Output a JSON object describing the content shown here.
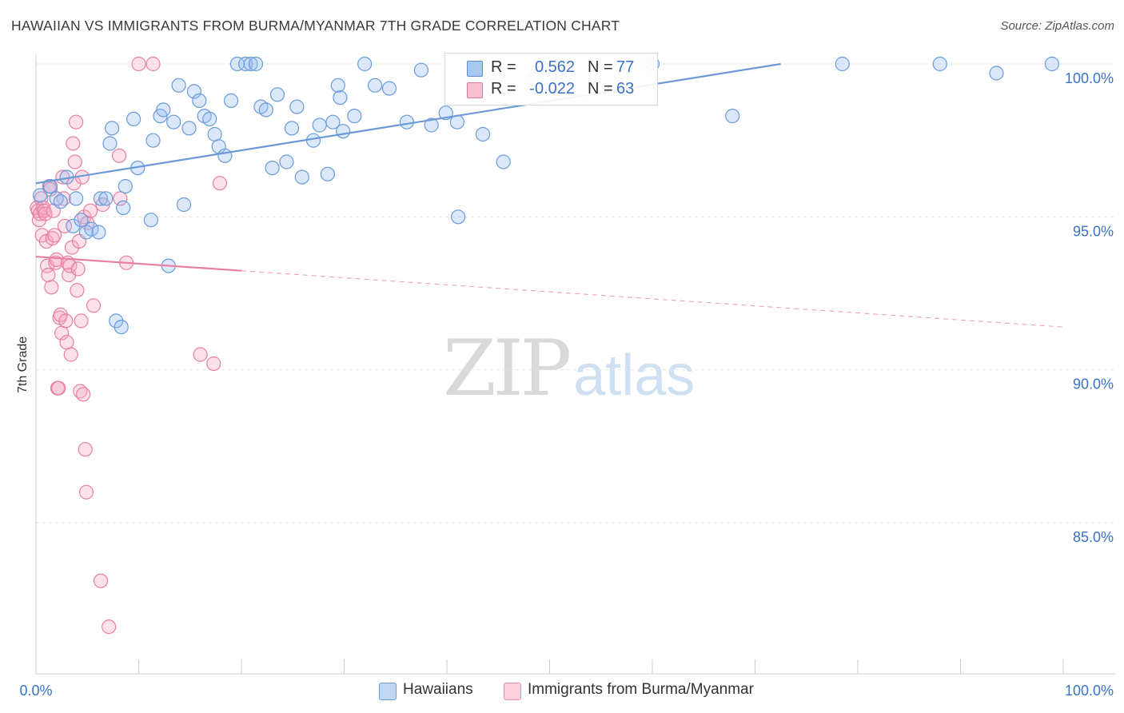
{
  "title": "HAWAIIAN VS IMMIGRANTS FROM BURMA/MYANMAR 7TH GRADE CORRELATION CHART",
  "source": "Source: ZipAtlas.com",
  "watermark": {
    "zip": "ZIP",
    "atlas": "atlas"
  },
  "legend_top": {
    "rows": [
      {
        "r_label": "R =",
        "r_value": "0.562",
        "n_label": "N =",
        "n_value": "77",
        "color": "#a8c8f0",
        "border": "#5a8fd8"
      },
      {
        "r_label": "R =",
        "r_value": "-0.022",
        "n_label": "N =",
        "n_value": "63",
        "color": "#f8c0d0",
        "border": "#e07898"
      }
    ]
  },
  "legend_bottom": {
    "items": [
      {
        "label": "Hawaiians",
        "color": "#c0d8f5",
        "border": "#6a9ad8"
      },
      {
        "label": "Immigrants from Burma/Myanmar",
        "color": "#fad0dc",
        "border": "#e890aa"
      }
    ]
  },
  "chart_data": {
    "type": "scatter",
    "xlabel": "",
    "ylabel": "7th Grade",
    "xlim": [
      0,
      100
    ],
    "ylim": [
      80.5,
      100.5
    ],
    "x_tick_labels": [
      "0.0%",
      "100.0%"
    ],
    "y_ticks": [
      85,
      90,
      95,
      100
    ],
    "y_tick_labels": [
      "85.0%",
      "90.0%",
      "95.0%",
      "100.0%"
    ],
    "grid": true,
    "legend_position": "bottom",
    "series": [
      {
        "name": "Hawaiians",
        "color": "#6a9ad8",
        "fill": "rgba(150,190,240,0.35)",
        "trend": {
          "x0": 0,
          "y0": 96.1,
          "x1": 72.5,
          "y1": 100.0,
          "solid_to": 72.5
        },
        "points": [
          [
            0.4,
            95.7
          ],
          [
            1.4,
            96.0
          ],
          [
            2.0,
            95.6
          ],
          [
            2.4,
            95.5
          ],
          [
            3.0,
            96.3
          ],
          [
            3.6,
            94.7
          ],
          [
            3.9,
            95.6
          ],
          [
            4.4,
            94.9
          ],
          [
            4.9,
            94.5
          ],
          [
            5.4,
            94.6
          ],
          [
            6.1,
            94.5
          ],
          [
            6.3,
            95.6
          ],
          [
            6.8,
            95.6
          ],
          [
            7.2,
            97.4
          ],
          [
            7.4,
            97.9
          ],
          [
            7.8,
            91.6
          ],
          [
            8.3,
            91.4
          ],
          [
            8.5,
            95.3
          ],
          [
            8.7,
            96.0
          ],
          [
            9.5,
            98.2
          ],
          [
            9.9,
            96.6
          ],
          [
            11.2,
            94.9
          ],
          [
            11.4,
            97.5
          ],
          [
            12.1,
            98.3
          ],
          [
            12.4,
            98.5
          ],
          [
            12.9,
            93.4
          ],
          [
            13.4,
            98.1
          ],
          [
            13.9,
            99.3
          ],
          [
            14.4,
            95.4
          ],
          [
            14.9,
            97.9
          ],
          [
            15.4,
            99.1
          ],
          [
            15.9,
            98.8
          ],
          [
            16.4,
            98.3
          ],
          [
            16.9,
            98.2
          ],
          [
            17.4,
            97.7
          ],
          [
            17.8,
            97.3
          ],
          [
            18.4,
            97.0
          ],
          [
            19.0,
            98.8
          ],
          [
            19.6,
            100.0
          ],
          [
            20.4,
            100.0
          ],
          [
            20.9,
            100.0
          ],
          [
            21.4,
            100.0
          ],
          [
            21.9,
            98.6
          ],
          [
            22.4,
            98.5
          ],
          [
            23.0,
            96.6
          ],
          [
            23.5,
            99.0
          ],
          [
            24.4,
            96.8
          ],
          [
            24.9,
            97.9
          ],
          [
            25.4,
            98.6
          ],
          [
            25.9,
            96.3
          ],
          [
            27.0,
            97.5
          ],
          [
            27.6,
            98.0
          ],
          [
            28.4,
            96.4
          ],
          [
            28.9,
            98.1
          ],
          [
            29.4,
            99.3
          ],
          [
            29.6,
            98.9
          ],
          [
            29.9,
            97.8
          ],
          [
            31.0,
            98.3
          ],
          [
            32.0,
            100.0
          ],
          [
            33.0,
            99.3
          ],
          [
            34.4,
            99.2
          ],
          [
            36.1,
            98.1
          ],
          [
            37.5,
            99.8
          ],
          [
            38.5,
            98.0
          ],
          [
            39.9,
            98.4
          ],
          [
            41.0,
            98.1
          ],
          [
            41.1,
            95.0
          ],
          [
            43.5,
            97.7
          ],
          [
            45.5,
            96.8
          ],
          [
            48.5,
            99.5
          ],
          [
            50.0,
            100.0
          ],
          [
            60.0,
            100.0
          ],
          [
            67.8,
            98.3
          ],
          [
            78.5,
            100.0
          ],
          [
            88.0,
            100.0
          ],
          [
            98.9,
            100.0
          ],
          [
            93.5,
            99.7
          ]
        ]
      },
      {
        "name": "Immigrants from Burma/Myanmar",
        "color": "#e87fa0",
        "fill": "rgba(245,170,195,0.35)",
        "trend": {
          "x0": 0,
          "y0": 93.7,
          "x1": 100,
          "y1": 91.4,
          "solid_to": 20.0
        },
        "points": [
          [
            0.1,
            95.3
          ],
          [
            0.2,
            95.2
          ],
          [
            0.3,
            94.9
          ],
          [
            0.4,
            95.1
          ],
          [
            0.5,
            95.6
          ],
          [
            0.6,
            94.4
          ],
          [
            0.7,
            95.3
          ],
          [
            0.8,
            95.2
          ],
          [
            0.9,
            95.1
          ],
          [
            1.0,
            94.2
          ],
          [
            1.1,
            93.4
          ],
          [
            1.2,
            93.1
          ],
          [
            1.3,
            96.0
          ],
          [
            1.4,
            95.9
          ],
          [
            1.5,
            92.7
          ],
          [
            1.6,
            94.3
          ],
          [
            1.7,
            95.2
          ],
          [
            1.8,
            94.4
          ],
          [
            1.9,
            93.5
          ],
          [
            2.0,
            93.6
          ],
          [
            2.1,
            89.4
          ],
          [
            2.2,
            89.4
          ],
          [
            2.3,
            91.7
          ],
          [
            2.4,
            91.8
          ],
          [
            2.5,
            91.2
          ],
          [
            2.6,
            96.3
          ],
          [
            2.7,
            95.6
          ],
          [
            2.8,
            94.7
          ],
          [
            2.9,
            91.6
          ],
          [
            3.0,
            90.9
          ],
          [
            3.1,
            93.5
          ],
          [
            3.2,
            93.1
          ],
          [
            3.3,
            93.4
          ],
          [
            3.4,
            90.5
          ],
          [
            3.5,
            94.0
          ],
          [
            3.6,
            97.4
          ],
          [
            3.7,
            96.1
          ],
          [
            3.8,
            96.8
          ],
          [
            3.9,
            98.1
          ],
          [
            4.0,
            92.6
          ],
          [
            4.1,
            93.3
          ],
          [
            4.2,
            94.2
          ],
          [
            4.3,
            89.3
          ],
          [
            4.4,
            91.6
          ],
          [
            4.5,
            96.3
          ],
          [
            4.6,
            89.2
          ],
          [
            4.7,
            95.0
          ],
          [
            4.8,
            87.4
          ],
          [
            4.9,
            86.0
          ],
          [
            5.0,
            94.8
          ],
          [
            5.3,
            95.2
          ],
          [
            5.6,
            92.1
          ],
          [
            6.3,
            83.1
          ],
          [
            6.5,
            95.4
          ],
          [
            7.1,
            81.6
          ],
          [
            8.1,
            97.0
          ],
          [
            8.2,
            95.6
          ],
          [
            8.8,
            93.5
          ],
          [
            10.0,
            100.0
          ],
          [
            11.4,
            100.0
          ],
          [
            16.0,
            90.5
          ],
          [
            17.3,
            90.2
          ],
          [
            17.9,
            96.1
          ]
        ]
      }
    ]
  }
}
